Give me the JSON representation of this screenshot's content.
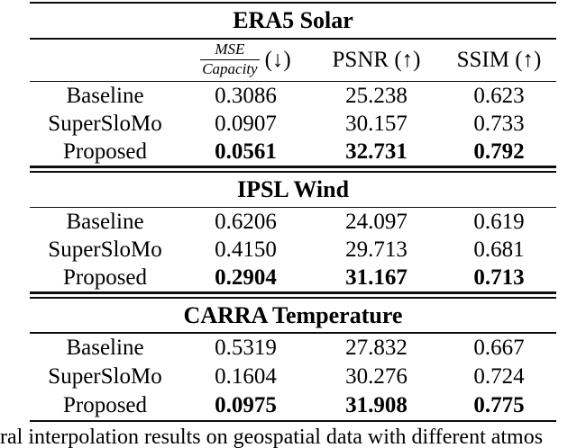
{
  "colors": {
    "text": "#000000",
    "background": "#ffffff",
    "rule": "#0d0d0d"
  },
  "table": {
    "header": {
      "fraction_numerator": "MSE",
      "fraction_denominator": "Capacity",
      "fraction_arrow": "(↓)",
      "psnr": "PSNR (↑)",
      "ssim": "SSIM (↑)"
    },
    "sections": [
      {
        "title": "ERA5 Solar",
        "rows": [
          {
            "method": "Baseline",
            "mse_capacity": "0.3086",
            "psnr": "25.238",
            "ssim": "0.623"
          },
          {
            "method": "SuperSloMo",
            "mse_capacity": "0.0907",
            "psnr": "30.157",
            "ssim": "0.733"
          },
          {
            "method": "Proposed",
            "mse_capacity": "0.0561",
            "psnr": "32.731",
            "ssim": "0.792"
          }
        ]
      },
      {
        "title": "IPSL Wind",
        "rows": [
          {
            "method": "Baseline",
            "mse_capacity": "0.6206",
            "psnr": "24.097",
            "ssim": "0.619"
          },
          {
            "method": "SuperSloMo",
            "mse_capacity": "0.4150",
            "psnr": "29.713",
            "ssim": "0.681"
          },
          {
            "method": "Proposed",
            "mse_capacity": "0.2904",
            "psnr": "31.167",
            "ssim": "0.713"
          }
        ]
      },
      {
        "title": "CARRA Temperature",
        "rows": [
          {
            "method": "Baseline",
            "mse_capacity": "0.5319",
            "psnr": "27.832",
            "ssim": "0.667"
          },
          {
            "method": "SuperSloMo",
            "mse_capacity": "0.1604",
            "psnr": "30.276",
            "ssim": "0.724"
          },
          {
            "method": "Proposed",
            "mse_capacity": "0.0975",
            "psnr": "31.908",
            "ssim": "0.775"
          }
        ]
      }
    ]
  },
  "caption": {
    "visible_text": "ral interpolation results on geospatial data with different atmos"
  }
}
